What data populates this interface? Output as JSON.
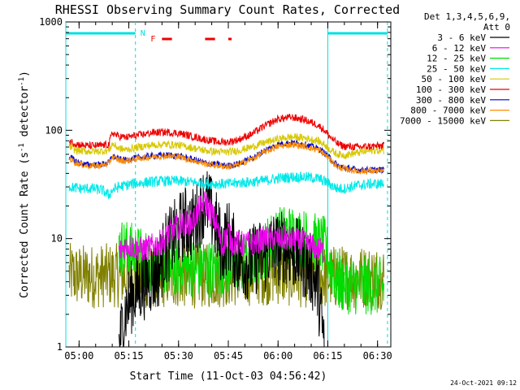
{
  "chart_data": {
    "type": "line",
    "title": "RHESSI Observing Summary Count Rates, Corrected",
    "xlabel": "Start Time (11-Oct-03 04:56:42)",
    "ylabel_parts": [
      "Corrected Count Rate (s",
      "-1",
      " detector",
      "-1",
      ")"
    ],
    "yscale": "log",
    "ylim": [
      1,
      1000
    ],
    "xlim": [
      "04:56",
      "06:34"
    ],
    "xticks": [
      "05:00",
      "05:15",
      "05:30",
      "05:45",
      "06:00",
      "06:15",
      "06:30"
    ],
    "yticks": [
      "1",
      "10",
      "100",
      "1000"
    ],
    "legend_header": [
      "Det 1,3,4,5,6,9,",
      "Att 0"
    ],
    "legend_position": "right",
    "timestamp": "24-Oct-2021 09:12",
    "night_bar": {
      "label": "N",
      "color": "#00e0e0",
      "intervals": [
        [
          "04:56",
          "05:17"
        ],
        [
          "06:15",
          "06:33"
        ]
      ]
    },
    "flare_bar": {
      "label": "F",
      "color": "#ee0000",
      "intervals": [
        [
          "05:25",
          "05:28"
        ],
        [
          "05:38",
          "05:41"
        ],
        [
          "05:45",
          "05:46"
        ]
      ]
    },
    "vertical_markers": {
      "solid": [
        "04:56",
        "06:15"
      ],
      "dashed": [
        "05:17",
        "06:33"
      ],
      "color": "#00e0e0"
    },
    "series": [
      {
        "name": "3 - 6 keV",
        "color": "#000000",
        "points": [
          [
            "05:12",
            1
          ],
          [
            "05:14",
            2.2
          ],
          [
            "05:16",
            3.0
          ],
          [
            "05:18",
            3.5
          ],
          [
            "05:20",
            4.0
          ],
          [
            "05:22",
            4.5
          ],
          [
            "05:24",
            5.0
          ],
          [
            "05:26",
            8.0
          ],
          [
            "05:28",
            9.5
          ],
          [
            "05:30",
            12
          ],
          [
            "05:32",
            14
          ],
          [
            "05:34",
            13
          ],
          [
            "05:36",
            17
          ],
          [
            "05:38",
            23
          ],
          [
            "05:40",
            17
          ],
          [
            "05:42",
            11
          ],
          [
            "05:43",
            8.0
          ],
          [
            "05:45",
            11
          ],
          [
            "05:46",
            8.5
          ],
          [
            "05:47",
            7.5
          ],
          [
            "05:48",
            6.5
          ],
          [
            "05:50",
            6.0
          ],
          [
            "05:52",
            6.0
          ],
          [
            "05:54",
            7.0
          ],
          [
            "05:56",
            6.5
          ],
          [
            "05:58",
            8.5
          ],
          [
            "06:00",
            8.0
          ],
          [
            "06:02",
            8.5
          ],
          [
            "06:04",
            7.5
          ],
          [
            "06:06",
            7.0
          ],
          [
            "06:08",
            6.0
          ],
          [
            "06:10",
            5.0
          ],
          [
            "06:12",
            3.5
          ],
          [
            "06:14",
            1
          ]
        ]
      },
      {
        "name": "6 - 12 keV",
        "color": "#ee00ee",
        "points": [
          [
            "05:12",
            7.5
          ],
          [
            "05:14",
            8.5
          ],
          [
            "05:16",
            8.5
          ],
          [
            "05:18",
            8.0
          ],
          [
            "05:20",
            8.0
          ],
          [
            "05:22",
            8.5
          ],
          [
            "05:24",
            9.0
          ],
          [
            "05:26",
            10
          ],
          [
            "05:28",
            12
          ],
          [
            "05:30",
            13
          ],
          [
            "05:32",
            14
          ],
          [
            "05:34",
            14
          ],
          [
            "05:36",
            18
          ],
          [
            "05:38",
            22
          ],
          [
            "05:40",
            17
          ],
          [
            "05:42",
            12
          ],
          [
            "05:43",
            8.0
          ],
          [
            "05:45",
            12
          ],
          [
            "05:46",
            9.0
          ],
          [
            "05:48",
            9.0
          ],
          [
            "05:50",
            9.0
          ],
          [
            "05:52",
            9.0
          ],
          [
            "05:54",
            9.5
          ],
          [
            "05:56",
            10
          ],
          [
            "05:58",
            10
          ],
          [
            "06:00",
            10
          ],
          [
            "06:02",
            10
          ],
          [
            "06:04",
            10
          ],
          [
            "06:06",
            9.5
          ],
          [
            "06:08",
            9.0
          ],
          [
            "06:10",
            8.5
          ],
          [
            "06:12",
            8.0
          ],
          [
            "06:14",
            7.5
          ]
        ]
      },
      {
        "name": "12 - 25 keV",
        "color": "#00dd00",
        "points": [
          [
            "05:12",
            8.5
          ],
          [
            "05:14",
            8.0
          ],
          [
            "05:16",
            7.5
          ],
          [
            "05:18",
            7.0
          ],
          [
            "05:20",
            6.5
          ],
          [
            "05:22",
            6.0
          ],
          [
            "05:24",
            5.8
          ],
          [
            "05:26",
            5.6
          ],
          [
            "05:28",
            5.5
          ],
          [
            "05:30",
            5.5
          ],
          [
            "05:32",
            5.5
          ],
          [
            "05:34",
            5.4
          ],
          [
            "05:36",
            5.3
          ],
          [
            "05:38",
            5.3
          ],
          [
            "05:40",
            5.2
          ],
          [
            "05:42",
            5.3
          ],
          [
            "05:44",
            5.5
          ],
          [
            "05:46",
            5.6
          ],
          [
            "05:48",
            5.8
          ],
          [
            "05:50",
            6.0
          ],
          [
            "05:52",
            6.5
          ],
          [
            "05:54",
            7.0
          ],
          [
            "05:56",
            8.0
          ],
          [
            "05:58",
            9.5
          ],
          [
            "06:00",
            10.5
          ],
          [
            "06:02",
            11
          ],
          [
            "06:04",
            11
          ],
          [
            "06:06",
            10.5
          ],
          [
            "06:08",
            10
          ],
          [
            "06:10",
            9.5
          ],
          [
            "06:12",
            9.0
          ],
          [
            "06:14",
            8.5
          ],
          [
            "06:16",
            5.5
          ],
          [
            "06:18",
            4.0
          ],
          [
            "06:20",
            3.8
          ],
          [
            "06:22",
            3.8
          ],
          [
            "06:24",
            3.7
          ],
          [
            "06:26",
            3.7
          ],
          [
            "06:28",
            3.7
          ],
          [
            "06:30",
            3.6
          ],
          [
            "06:32",
            3.6
          ]
        ]
      },
      {
        "name": "25 - 50 keV",
        "color": "#00e8e8",
        "points": [
          [
            "04:57",
            30
          ],
          [
            "05:00",
            29
          ],
          [
            "05:04",
            29
          ],
          [
            "05:07",
            28
          ],
          [
            "05:09",
            25
          ],
          [
            "05:10",
            28
          ],
          [
            "05:12",
            30
          ],
          [
            "05:14",
            31
          ],
          [
            "05:16",
            32
          ],
          [
            "05:20",
            33
          ],
          [
            "05:25",
            34
          ],
          [
            "05:30",
            34
          ],
          [
            "05:35",
            33
          ],
          [
            "05:40",
            32
          ],
          [
            "05:45",
            32
          ],
          [
            "05:50",
            33
          ],
          [
            "05:55",
            34
          ],
          [
            "06:00",
            36
          ],
          [
            "06:04",
            37
          ],
          [
            "06:08",
            37
          ],
          [
            "06:12",
            36
          ],
          [
            "06:14",
            34
          ],
          [
            "06:16",
            31
          ],
          [
            "06:18",
            29
          ],
          [
            "06:20",
            29
          ],
          [
            "06:24",
            31
          ],
          [
            "06:28",
            32
          ],
          [
            "06:32",
            32
          ]
        ]
      },
      {
        "name": "50 - 100 keV",
        "color": "#d8c800",
        "points": [
          [
            "04:57",
            72
          ],
          [
            "04:59",
            65
          ],
          [
            "05:02",
            64
          ],
          [
            "05:06",
            64
          ],
          [
            "05:09",
            65
          ],
          [
            "05:10",
            75
          ],
          [
            "05:12",
            68
          ],
          [
            "05:14",
            66
          ],
          [
            "05:18",
            70
          ],
          [
            "05:22",
            73
          ],
          [
            "05:26",
            74
          ],
          [
            "05:30",
            73
          ],
          [
            "05:34",
            69
          ],
          [
            "05:38",
            65
          ],
          [
            "05:42",
            63
          ],
          [
            "05:45",
            63
          ],
          [
            "05:48",
            65
          ],
          [
            "05:52",
            70
          ],
          [
            "05:56",
            77
          ],
          [
            "06:00",
            83
          ],
          [
            "06:04",
            87
          ],
          [
            "06:08",
            85
          ],
          [
            "06:12",
            80
          ],
          [
            "06:14",
            74
          ],
          [
            "06:16",
            65
          ],
          [
            "06:18",
            60
          ],
          [
            "06:20",
            59
          ],
          [
            "06:24",
            62
          ],
          [
            "06:28",
            65
          ],
          [
            "06:32",
            65
          ]
        ]
      },
      {
        "name": "100 - 300 keV",
        "color": "#ee0000",
        "points": [
          [
            "04:57",
            80
          ],
          [
            "04:59",
            75
          ],
          [
            "05:02",
            72
          ],
          [
            "05:06",
            72
          ],
          [
            "05:09",
            74
          ],
          [
            "05:10",
            95
          ],
          [
            "05:12",
            88
          ],
          [
            "05:14",
            86
          ],
          [
            "05:18",
            90
          ],
          [
            "05:22",
            95
          ],
          [
            "05:26",
            96
          ],
          [
            "05:30",
            94
          ],
          [
            "05:34",
            88
          ],
          [
            "05:38",
            82
          ],
          [
            "05:42",
            78
          ],
          [
            "05:45",
            78
          ],
          [
            "05:48",
            82
          ],
          [
            "05:52",
            92
          ],
          [
            "05:56",
            110
          ],
          [
            "06:00",
            127
          ],
          [
            "06:04",
            132
          ],
          [
            "06:08",
            125
          ],
          [
            "06:12",
            112
          ],
          [
            "06:14",
            100
          ],
          [
            "06:16",
            85
          ],
          [
            "06:18",
            75
          ],
          [
            "06:20",
            71
          ],
          [
            "06:24",
            70
          ],
          [
            "06:28",
            71
          ],
          [
            "06:32",
            72
          ]
        ]
      },
      {
        "name": "300 - 800 keV",
        "color": "#0000cc",
        "points": [
          [
            "04:57",
            57
          ],
          [
            "04:59",
            52
          ],
          [
            "05:02",
            48
          ],
          [
            "05:06",
            48
          ],
          [
            "05:09",
            50
          ],
          [
            "05:10",
            58
          ],
          [
            "05:12",
            54
          ],
          [
            "05:14",
            53
          ],
          [
            "05:18",
            56
          ],
          [
            "05:22",
            58
          ],
          [
            "05:26",
            59
          ],
          [
            "05:30",
            58
          ],
          [
            "05:34",
            54
          ],
          [
            "05:38",
            50
          ],
          [
            "05:42",
            48
          ],
          [
            "05:45",
            47
          ],
          [
            "05:48",
            49
          ],
          [
            "05:52",
            55
          ],
          [
            "05:56",
            65
          ],
          [
            "06:00",
            74
          ],
          [
            "06:04",
            77
          ],
          [
            "06:08",
            74
          ],
          [
            "06:12",
            68
          ],
          [
            "06:14",
            62
          ],
          [
            "06:16",
            54
          ],
          [
            "06:18",
            47
          ],
          [
            "06:20",
            45
          ],
          [
            "06:24",
            43
          ],
          [
            "06:28",
            43
          ],
          [
            "06:32",
            43
          ]
        ]
      },
      {
        "name": "800 - 7000 keV",
        "color": "#ff8c00",
        "points": [
          [
            "04:57",
            55
          ],
          [
            "04:59",
            50
          ],
          [
            "05:02",
            47
          ],
          [
            "05:06",
            47
          ],
          [
            "05:09",
            49
          ],
          [
            "05:10",
            57
          ],
          [
            "05:12",
            53
          ],
          [
            "05:14",
            52
          ],
          [
            "05:18",
            55
          ],
          [
            "05:22",
            57
          ],
          [
            "05:26",
            58
          ],
          [
            "05:30",
            57
          ],
          [
            "05:34",
            53
          ],
          [
            "05:38",
            49
          ],
          [
            "05:42",
            47
          ],
          [
            "05:45",
            46
          ],
          [
            "05:48",
            48
          ],
          [
            "05:52",
            54
          ],
          [
            "05:56",
            63
          ],
          [
            "06:00",
            71
          ],
          [
            "06:04",
            74
          ],
          [
            "06:08",
            71
          ],
          [
            "06:12",
            66
          ],
          [
            "06:14",
            60
          ],
          [
            "06:16",
            52
          ],
          [
            "06:18",
            46
          ],
          [
            "06:20",
            44
          ],
          [
            "06:24",
            42
          ],
          [
            "06:28",
            42
          ],
          [
            "06:32",
            42
          ]
        ]
      },
      {
        "name": "7000 - 15000 keV",
        "color": "#808000",
        "points": [
          [
            "04:57",
            4.6
          ],
          [
            "05:00",
            4.5
          ],
          [
            "05:05",
            4.5
          ],
          [
            "05:10",
            4.6
          ],
          [
            "05:15",
            4.5
          ],
          [
            "05:20",
            4.4
          ],
          [
            "05:25",
            4.5
          ],
          [
            "05:30",
            4.5
          ],
          [
            "05:35",
            4.5
          ],
          [
            "05:40",
            4.5
          ],
          [
            "05:45",
            4.6
          ],
          [
            "05:50",
            4.7
          ],
          [
            "05:55",
            4.8
          ],
          [
            "06:00",
            4.8
          ],
          [
            "06:05",
            4.6
          ],
          [
            "06:10",
            4.5
          ],
          [
            "06:15",
            4.4
          ],
          [
            "06:20",
            4.4
          ],
          [
            "06:25",
            4.4
          ],
          [
            "06:30",
            4.4
          ],
          [
            "06:32",
            4.4
          ]
        ]
      }
    ]
  }
}
